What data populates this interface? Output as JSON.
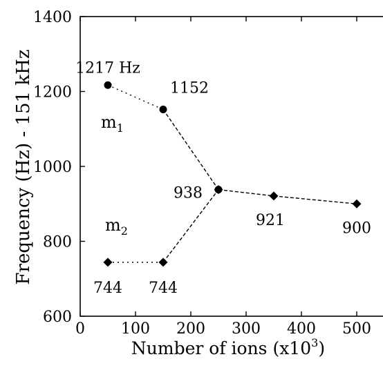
{
  "chart_data": {
    "type": "line",
    "xlabel": "Number of ions  (x10",
    "xlabel_sup": "3",
    "xlabel_end": ")",
    "ylabel": "Frequency (Hz) - 151 kHz",
    "xlim": [
      0,
      550
    ],
    "ylim": [
      600,
      1400
    ],
    "x_ticks": [
      0,
      100,
      200,
      300,
      400,
      500
    ],
    "y_ticks": [
      600,
      800,
      1000,
      1200,
      1400
    ],
    "grid": false,
    "series": [
      {
        "name": "m1",
        "marker": "circle",
        "x": [
          50,
          150,
          250
        ],
        "y": [
          1217,
          1152,
          938
        ],
        "line_style": "dotted-then-dashed"
      },
      {
        "name": "m2",
        "marker": "diamond",
        "x": [
          50,
          150,
          250,
          350,
          500
        ],
        "y": [
          744,
          744,
          938,
          921,
          900
        ],
        "line_style": "dotted-then-dashed"
      }
    ],
    "data_labels": [
      {
        "text": "1217 Hz",
        "x": 50,
        "y": 1217
      },
      {
        "text": "1152",
        "x": 150,
        "y": 1152
      },
      {
        "text": "938",
        "x": 250,
        "y": 938
      },
      {
        "text": "921",
        "x": 350,
        "y": 921
      },
      {
        "text": "900",
        "x": 500,
        "y": 900
      },
      {
        "text": "744",
        "x": 50,
        "y": 744
      },
      {
        "text": "744",
        "x": 150,
        "y": 744
      }
    ],
    "annotations": [
      {
        "base": "m",
        "sub": "1",
        "series": "m1"
      },
      {
        "base": "m",
        "sub": "2",
        "series": "m2"
      }
    ]
  }
}
